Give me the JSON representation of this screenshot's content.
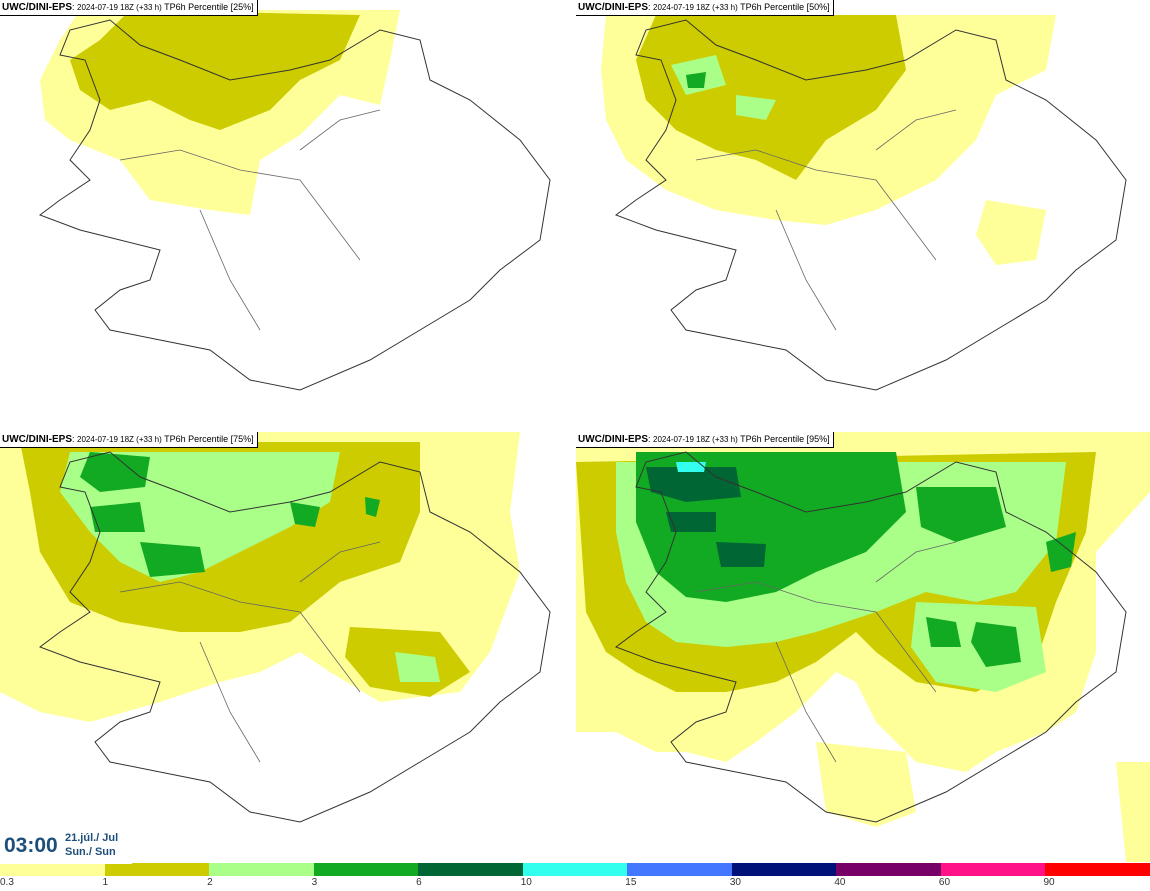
{
  "panels": [
    {
      "model": "UWC/DINI-EPS",
      "meta": "2024-07-19 18Z (+33 h)",
      "param": "TP6h Percentile [25%]"
    },
    {
      "model": "UWC/DINI-EPS",
      "meta": "2024-07-19 18Z (+33 h)",
      "param": "TP6h Percentile [50%]"
    },
    {
      "model": "UWC/DINI-EPS",
      "meta": "2024-07-19 18Z (+33 h)",
      "param": "TP6h Percentile [75%]"
    },
    {
      "model": "UWC/DINI-EPS",
      "meta": "2024-07-19 18Z (+33 h)",
      "param": "TP6h Percentile [95%]"
    }
  ],
  "valid_time": {
    "time": "03:00",
    "date": "21.júl./ Jul",
    "day": "Sun./ Sun"
  },
  "legend": {
    "ticks": [
      "0.3",
      "1",
      "2",
      "3",
      "6",
      "10",
      "15",
      "30",
      "40",
      "60",
      "90"
    ],
    "colors": [
      "#ffff99",
      "#cccc00",
      "#aaff88",
      "#11aa22",
      "#006633",
      "#33ffee",
      "#4477ff",
      "#001177",
      "#770066",
      "#ff1188",
      "#ff0000"
    ]
  }
}
